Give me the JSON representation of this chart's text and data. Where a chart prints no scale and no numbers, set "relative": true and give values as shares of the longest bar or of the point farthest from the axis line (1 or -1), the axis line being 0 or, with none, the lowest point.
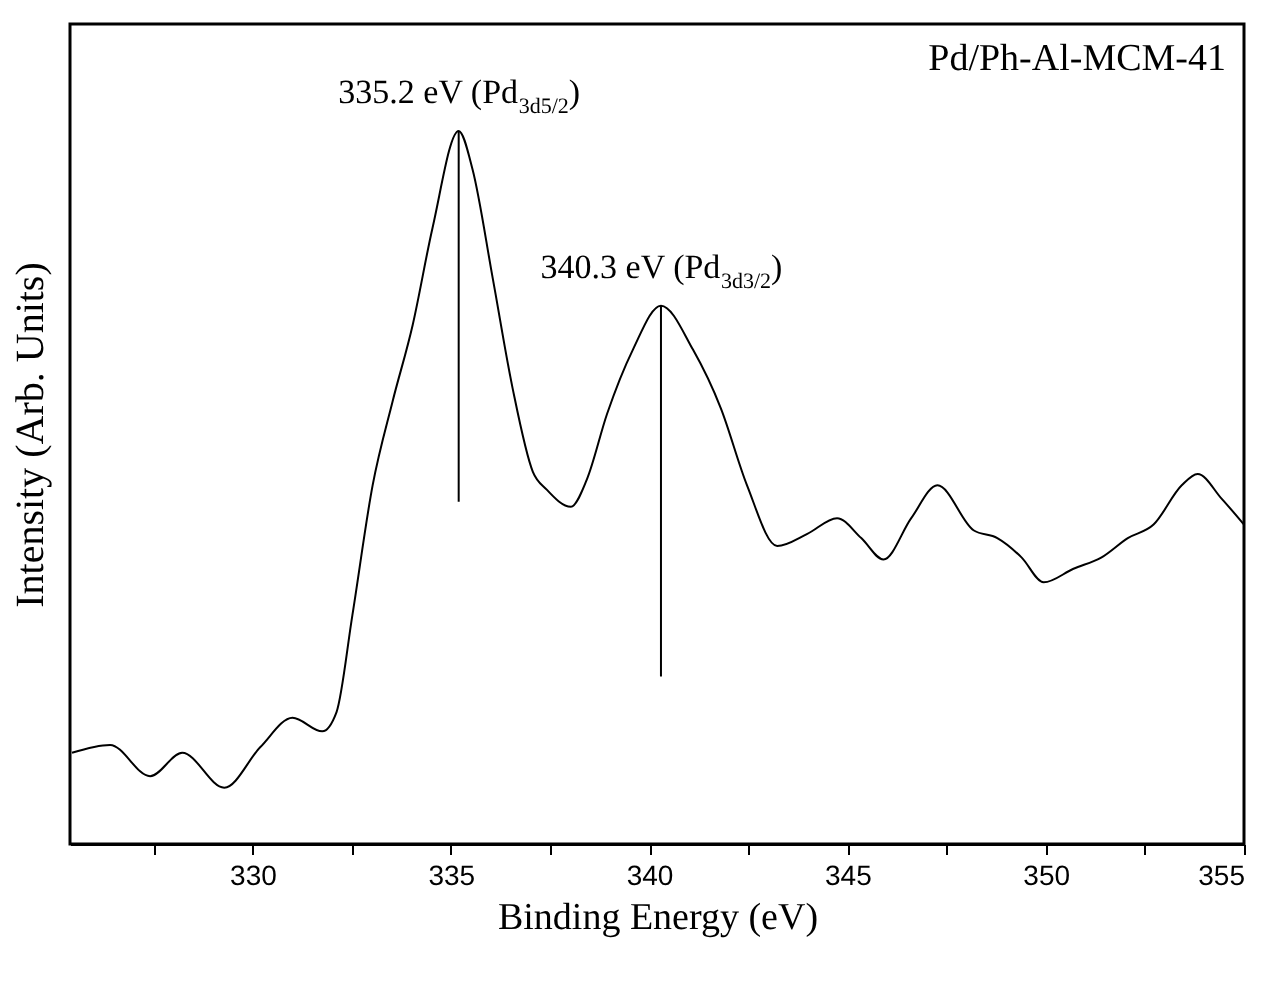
{
  "chart_data": {
    "type": "line",
    "title": "Pd/Ph-Al-MCM-41",
    "xlabel": "Binding Energy (eV)",
    "ylabel": "Intensity (Arb. Units)",
    "relative": true,
    "x": [
      325.45,
      326.41,
      327.42,
      328.23,
      329.29,
      330.2,
      331.01,
      331.76,
      332.12,
      332.52,
      333.03,
      333.53,
      334.04,
      334.54,
      335.2,
      335.55,
      336.06,
      336.56,
      337.07,
      337.42,
      338.03,
      338.43,
      338.94,
      339.59,
      340.3,
      341.11,
      341.81,
      342.47,
      343.23,
      343.99,
      344.74,
      345.35,
      345.91,
      346.61,
      347.27,
      348.18,
      348.78,
      349.39,
      349.95,
      350.7,
      351.41,
      352.07,
      352.72,
      353.43,
      353.83,
      354.44,
      355.0
    ],
    "series": [
      {
        "color": "#000000",
        "values": [
          0.128,
          0.139,
          0.095,
          0.128,
          0.079,
          0.136,
          0.177,
          0.158,
          0.185,
          0.321,
          0.503,
          0.62,
          0.728,
          0.864,
          1.0,
          0.946,
          0.793,
          0.639,
          0.522,
          0.497,
          0.473,
          0.511,
          0.603,
          0.693,
          0.755,
          0.693,
          0.611,
          0.503,
          0.418,
          0.435,
          0.457,
          0.429,
          0.399,
          0.457,
          0.503,
          0.44,
          0.429,
          0.402,
          0.367,
          0.386,
          0.402,
          0.429,
          0.448,
          0.503,
          0.519,
          0.484,
          0.448
        ]
      }
    ],
    "xlim": [
      325.4,
      355
    ],
    "xticks": [
      {
        "value": 327.5,
        "label": null
      },
      330,
      {
        "value": 332.5,
        "label": null
      },
      335,
      {
        "value": 337.5,
        "label": null
      },
      340,
      {
        "value": 342.5,
        "label": null
      },
      345,
      {
        "value": 347.5,
        "label": null
      },
      350,
      {
        "value": 352.5,
        "label": null
      },
      355
    ],
    "annotations": [
      {
        "text": "335.2 eV (Pd$_{3d5/2}$)",
        "x": 335.2,
        "y": 1.0
      },
      {
        "text": "340.3 eV (Pd$_{3d3/2}$)",
        "x": 340.3,
        "y": 0.755
      }
    ],
    "grid": false,
    "marker": "none",
    "line_style": "solid"
  }
}
